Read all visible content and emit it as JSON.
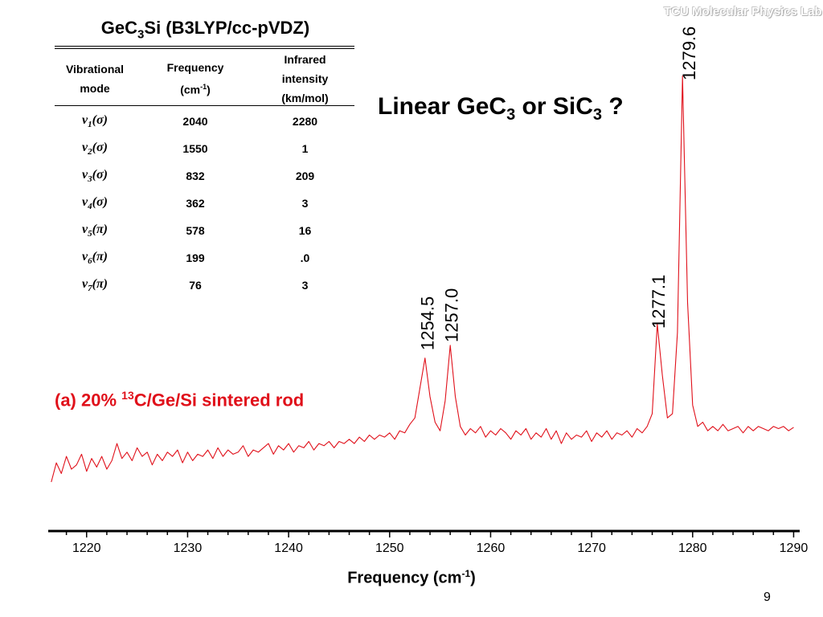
{
  "table": {
    "title": "GeC",
    "title_sub": "3",
    "title_rest": "Si (B3LYP/cc-pVDZ)",
    "headers": {
      "mode_line1": "Vibrational",
      "mode_line2": "mode",
      "freq_line1": "Frequency",
      "freq_line2_pre": "(cm",
      "freq_line2_sup": "-1",
      "freq_line2_post": ")",
      "ir_line1": "Infrared",
      "ir_line2": "intensity",
      "ir_line3": "(km/mol)"
    },
    "rows": [
      {
        "mode": "v",
        "sub": "1",
        "sym": "(σ)",
        "frequency": "2040",
        "intensity": "2280"
      },
      {
        "mode": "v",
        "sub": "2",
        "sym": "(σ)",
        "frequency": "1550",
        "intensity": "1"
      },
      {
        "mode": "v",
        "sub": "3",
        "sym": "(σ)",
        "frequency": "832",
        "intensity": "209"
      },
      {
        "mode": "v",
        "sub": "4",
        "sym": "(σ)",
        "frequency": "362",
        "intensity": "3"
      },
      {
        "mode": "v",
        "sub": "5",
        "sym": "(π)",
        "frequency": "578",
        "intensity": "16"
      },
      {
        "mode": "v",
        "sub": "6",
        "sym": "(π)",
        "frequency": "199",
        "intensity": ".0"
      },
      {
        "mode": "v",
        "sub": "7",
        "sym": "(π)",
        "frequency": "76",
        "intensity": "3"
      }
    ]
  },
  "question": {
    "pre": "Linear GeC",
    "sub1": "3",
    "mid": " or SiC",
    "sub2": "3",
    "post": " ?"
  },
  "sample_label": {
    "pre": "(a) 20% ",
    "sup": "13",
    "post": "C/Ge/Si sintered  rod"
  },
  "lab_watermark": "TCU Molecular Physics Lab",
  "page_number": "9",
  "colors": {
    "spectrum": "#e0101a",
    "sample_label": "#e0101a",
    "axis": "#000000"
  },
  "chart_data": {
    "type": "line",
    "xlabel_pre": "Frequency (cm",
    "xlabel_sup": "-1",
    "xlabel_post": ")",
    "xlim": [
      1216.2,
      1290.6
    ],
    "xticks": [
      1220,
      1230,
      1240,
      1250,
      1260,
      1270,
      1280,
      1290
    ],
    "y_units": "absorbance (arbitrary, axis not shown)",
    "grid": false,
    "series": [
      {
        "x": [
          1216.5,
          1217.0,
          1217.5,
          1218.0,
          1218.5,
          1219.0,
          1219.5,
          1220.0,
          1220.5,
          1221.0,
          1221.5,
          1222.0,
          1222.5,
          1223.0,
          1223.5,
          1224.0,
          1224.5,
          1225.0,
          1225.5,
          1226.0,
          1226.5,
          1227.0,
          1227.5,
          1228.0,
          1228.5,
          1229.0,
          1229.5,
          1230.0,
          1230.5,
          1231.0,
          1231.5,
          1232.0,
          1232.5,
          1233.0,
          1233.5,
          1234.0,
          1234.5,
          1235.0,
          1235.5,
          1236.0,
          1236.5,
          1237.0,
          1237.5,
          1238.0,
          1238.5,
          1239.0,
          1239.5,
          1240.0,
          1240.5,
          1241.0,
          1241.5,
          1242.0,
          1242.5,
          1243.0,
          1243.5,
          1244.0,
          1244.5,
          1245.0,
          1245.5,
          1246.0,
          1246.5,
          1247.0,
          1247.5,
          1248.0,
          1248.5,
          1249.0,
          1249.5,
          1250.0,
          1250.5,
          1251.0,
          1251.5,
          1252.0,
          1252.5,
          1253.0,
          1253.5,
          1254.0,
          1254.5,
          1255.0,
          1255.5,
          1256.0,
          1256.5,
          1257.0,
          1257.5,
          1258.0,
          1258.5,
          1259.0,
          1259.5,
          1260.0,
          1260.5,
          1261.0,
          1261.5,
          1262.0,
          1262.5,
          1263.0,
          1263.5,
          1264.0,
          1264.5,
          1265.0,
          1265.5,
          1266.0,
          1266.5,
          1267.0,
          1267.5,
          1268.0,
          1268.5,
          1269.0,
          1269.5,
          1270.0,
          1270.5,
          1271.0,
          1271.5,
          1272.0,
          1272.5,
          1273.0,
          1273.5,
          1274.0,
          1274.5,
          1275.0,
          1275.5,
          1276.0,
          1276.5,
          1277.0,
          1277.5,
          1278.0,
          1278.5,
          1279.0,
          1279.5,
          1280.0,
          1280.5,
          1281.0,
          1281.5,
          1282.0,
          1282.5,
          1283.0,
          1283.5,
          1284.0,
          1284.5,
          1285.0,
          1285.5,
          1286.0,
          1286.5,
          1287.0,
          1287.5,
          1288.0,
          1288.5,
          1289.0,
          1289.5,
          1290.0
        ],
        "values": [
          0.0,
          0.045,
          0.02,
          0.06,
          0.03,
          0.04,
          0.065,
          0.025,
          0.055,
          0.035,
          0.06,
          0.03,
          0.05,
          0.09,
          0.055,
          0.07,
          0.05,
          0.08,
          0.06,
          0.07,
          0.04,
          0.065,
          0.05,
          0.07,
          0.06,
          0.075,
          0.045,
          0.07,
          0.05,
          0.065,
          0.06,
          0.075,
          0.055,
          0.08,
          0.06,
          0.075,
          0.065,
          0.07,
          0.085,
          0.06,
          0.075,
          0.07,
          0.08,
          0.09,
          0.065,
          0.085,
          0.075,
          0.09,
          0.07,
          0.085,
          0.08,
          0.095,
          0.075,
          0.09,
          0.085,
          0.095,
          0.08,
          0.095,
          0.09,
          0.1,
          0.09,
          0.105,
          0.095,
          0.11,
          0.1,
          0.11,
          0.105,
          0.115,
          0.1,
          0.12,
          0.115,
          0.135,
          0.15,
          0.22,
          0.29,
          0.2,
          0.14,
          0.12,
          0.19,
          0.32,
          0.2,
          0.13,
          0.11,
          0.125,
          0.115,
          0.13,
          0.105,
          0.12,
          0.11,
          0.125,
          0.115,
          0.1,
          0.12,
          0.11,
          0.125,
          0.1,
          0.115,
          0.105,
          0.125,
          0.1,
          0.12,
          0.09,
          0.115,
          0.1,
          0.11,
          0.105,
          0.12,
          0.095,
          0.115,
          0.105,
          0.12,
          0.1,
          0.115,
          0.11,
          0.12,
          0.105,
          0.125,
          0.115,
          0.13,
          0.16,
          0.37,
          0.25,
          0.15,
          0.16,
          0.35,
          0.95,
          0.42,
          0.18,
          0.13,
          0.14,
          0.12,
          0.13,
          0.12,
          0.135,
          0.12,
          0.125,
          0.13,
          0.115,
          0.13,
          0.12,
          0.13,
          0.125,
          0.12,
          0.13,
          0.125,
          0.13,
          0.12,
          0.128
        ]
      }
    ],
    "peak_labels": [
      {
        "x": 1253.7,
        "label": "1254.5"
      },
      {
        "x": 1256.1,
        "label": "1257.0"
      },
      {
        "x": 1276.6,
        "label": "1277.1"
      },
      {
        "x": 1279.6,
        "label": "1279.6"
      }
    ]
  }
}
